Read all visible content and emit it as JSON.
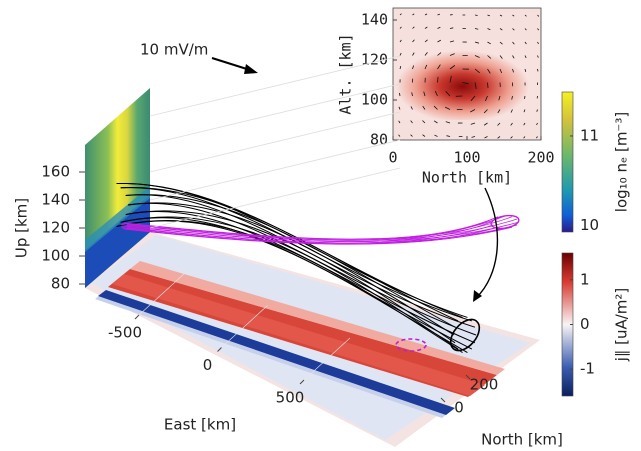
{
  "chart_data": [
    {
      "type": "surface3d",
      "annotation": "10 mV/m",
      "xlabel": "East [km]",
      "ylabel": "North [km]",
      "zlabel": "Up [km]",
      "xlim": [
        -800,
        800
      ],
      "xticks": [
        -500,
        0,
        500
      ],
      "ylim": [
        -100,
        300
      ],
      "yticks": [
        0,
        200
      ],
      "zlim": [
        80,
        180
      ],
      "zticks": [
        80,
        100,
        120,
        140,
        160
      ],
      "grid": true
    },
    {
      "type": "quiver",
      "xlabel": "North [km]",
      "ylabel": "Alt. [km]",
      "xlim": [
        0,
        200
      ],
      "xticks": [
        0,
        100,
        200
      ],
      "ylim": [
        80,
        146
      ],
      "yticks": [
        80,
        100,
        120,
        140
      ]
    },
    {
      "type": "colorbar",
      "label": "log₁₀ nₑ [m⁻³]",
      "ylim": [
        9.93,
        11.49
      ],
      "yticks": [
        10,
        11
      ]
    },
    {
      "type": "colorbar",
      "label": "j∥ [uA/m²]",
      "ylim": [
        -1.6,
        1.6
      ],
      "yticks": [
        -1,
        0,
        1
      ]
    }
  ]
}
